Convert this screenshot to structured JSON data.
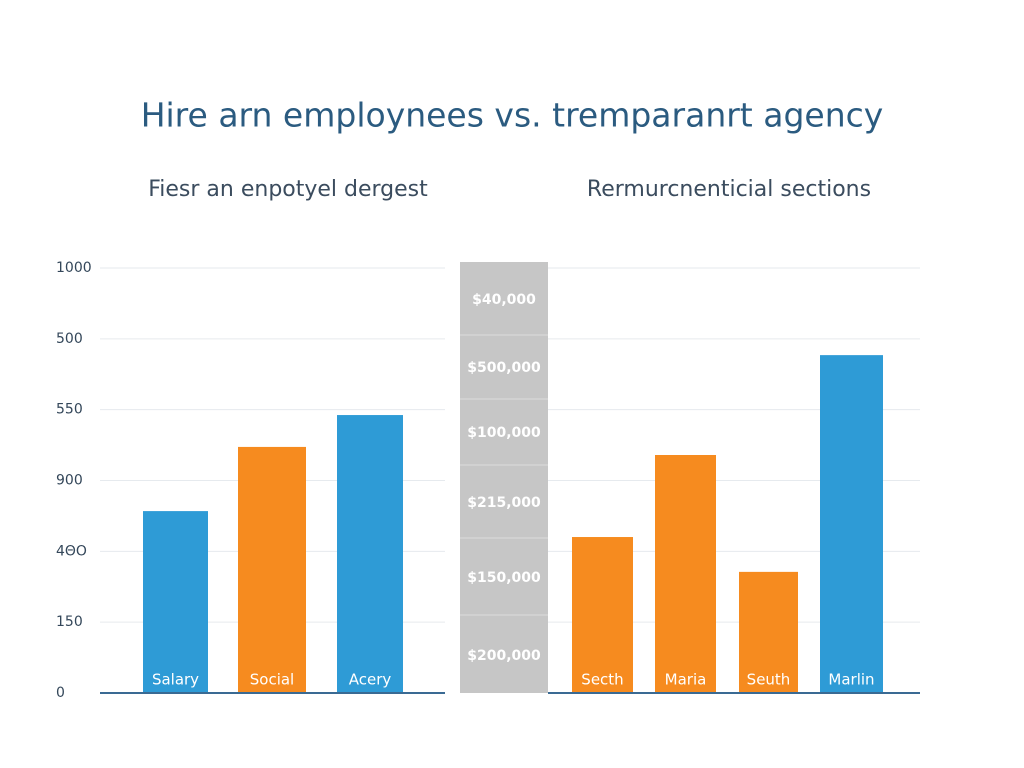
{
  "title": "Hire arn employnees vs. tremparanrt agency",
  "center_column": [
    "$40,000",
    "$500,000",
    "$100,000",
    "$215,000",
    "$150,000",
    "$200,000"
  ],
  "chart_data": [
    {
      "type": "bar",
      "subtitle": "Fiesr an enpotyel dergest",
      "categories": [
        "Salary",
        "Social",
        "Acery"
      ],
      "values": [
        428,
        579,
        654
      ],
      "colors": [
        "#2e9bd6",
        "#f68b1f",
        "#2e9bd6"
      ],
      "ylim": [
        0,
        1000
      ],
      "ytick_labels": [
        "1000",
        "500",
        "550",
        "900",
        "4ΘO",
        "150",
        "0"
      ]
    },
    {
      "type": "bar",
      "subtitle": "Rermurcnenticial sections",
      "categories": [
        "Secth",
        "Maria",
        "Seuth",
        "Marlin"
      ],
      "values": [
        367,
        560,
        285,
        795
      ],
      "colors": [
        "#f68b1f",
        "#f68b1f",
        "#f68b1f",
        "#2e9bd6"
      ],
      "ylim": [
        0,
        1000
      ]
    }
  ]
}
